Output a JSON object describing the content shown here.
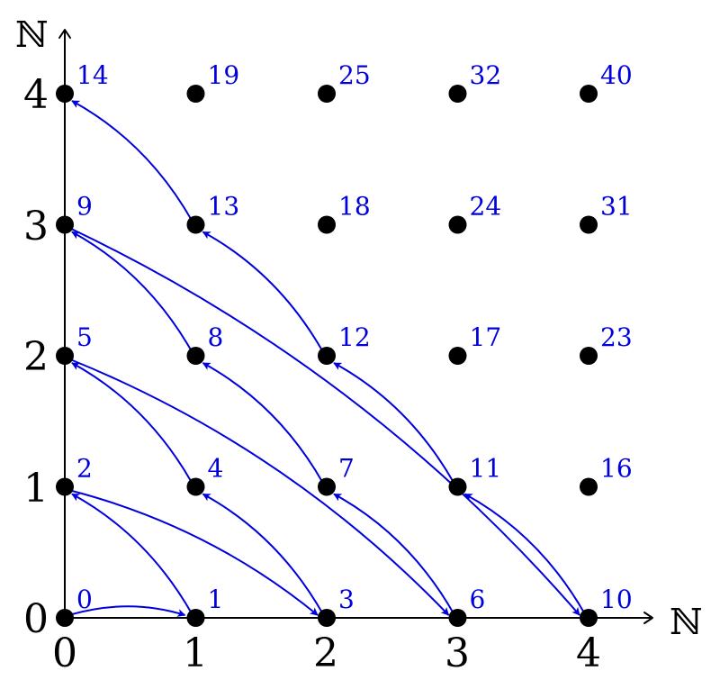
{
  "axes": {
    "x_name": "ℕ",
    "y_name": "ℕ",
    "x_ticks": [
      "0",
      "1",
      "2",
      "3",
      "4"
    ],
    "y_ticks": [
      "0",
      "1",
      "2",
      "3",
      "4"
    ]
  },
  "colors": {
    "point": "#000000",
    "label": "#0000dd",
    "arrow": "#0000dd"
  },
  "nodes": [
    {
      "i": 0,
      "j": 0,
      "label": "0"
    },
    {
      "i": 1,
      "j": 0,
      "label": "1"
    },
    {
      "i": 0,
      "j": 1,
      "label": "2"
    },
    {
      "i": 2,
      "j": 0,
      "label": "3"
    },
    {
      "i": 1,
      "j": 1,
      "label": "4"
    },
    {
      "i": 0,
      "j": 2,
      "label": "5"
    },
    {
      "i": 3,
      "j": 0,
      "label": "6"
    },
    {
      "i": 2,
      "j": 1,
      "label": "7"
    },
    {
      "i": 1,
      "j": 2,
      "label": "8"
    },
    {
      "i": 0,
      "j": 3,
      "label": "9"
    },
    {
      "i": 4,
      "j": 0,
      "label": "10"
    },
    {
      "i": 3,
      "j": 1,
      "label": "11"
    },
    {
      "i": 2,
      "j": 2,
      "label": "12"
    },
    {
      "i": 1,
      "j": 3,
      "label": "13"
    },
    {
      "i": 0,
      "j": 4,
      "label": "14"
    },
    {
      "i": 4,
      "j": 1,
      "label": "16"
    },
    {
      "i": 3,
      "j": 2,
      "label": "17"
    },
    {
      "i": 2,
      "j": 3,
      "label": "18"
    },
    {
      "i": 1,
      "j": 4,
      "label": "19"
    },
    {
      "i": 4,
      "j": 2,
      "label": "23"
    },
    {
      "i": 3,
      "j": 3,
      "label": "24"
    },
    {
      "i": 2,
      "j": 4,
      "label": "25"
    },
    {
      "i": 4,
      "j": 3,
      "label": "31"
    },
    {
      "i": 3,
      "j": 4,
      "label": "32"
    },
    {
      "i": 4,
      "j": 4,
      "label": "40"
    }
  ],
  "edges": [
    {
      "from": "0",
      "to": "1"
    },
    {
      "from": "1",
      "to": "2"
    },
    {
      "from": "2",
      "to": "3"
    },
    {
      "from": "3",
      "to": "4"
    },
    {
      "from": "4",
      "to": "5"
    },
    {
      "from": "5",
      "to": "6"
    },
    {
      "from": "6",
      "to": "7"
    },
    {
      "from": "7",
      "to": "8"
    },
    {
      "from": "8",
      "to": "9"
    },
    {
      "from": "9",
      "to": "10"
    },
    {
      "from": "10",
      "to": "11"
    },
    {
      "from": "11",
      "to": "12"
    },
    {
      "from": "12",
      "to": "13"
    },
    {
      "from": "13",
      "to": "14"
    }
  ]
}
